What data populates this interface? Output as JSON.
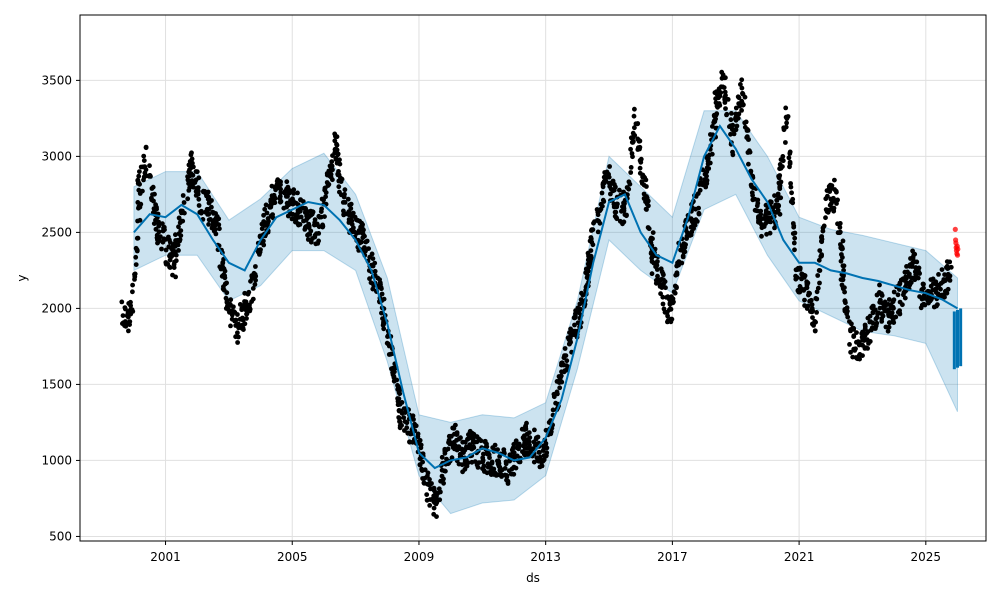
{
  "chart_data": {
    "type": "scatter",
    "title": "",
    "xlabel": "ds",
    "ylabel": "y",
    "xlim": [
      1998.3,
      2026.9
    ],
    "ylim": [
      470,
      3930
    ],
    "grid": true,
    "x_ticks": [
      2001,
      2005,
      2009,
      2013,
      2017,
      2021,
      2025
    ],
    "x_tick_labels": [
      "2001",
      "2005",
      "2009",
      "2013",
      "2017",
      "2021",
      "2025"
    ],
    "y_ticks": [
      500,
      1000,
      1500,
      2000,
      2500,
      3000,
      3500
    ],
    "y_tick_labels": [
      "500",
      "1000",
      "1500",
      "2000",
      "2500",
      "3000",
      "3500"
    ],
    "colors": {
      "observed": "#000000",
      "forecast": "#0072B2",
      "uncertainty": "#0072B2",
      "holdout": "#ff0000",
      "grid": "#e0e0e0"
    },
    "series": [
      {
        "kind": "trend",
        "x": [
          2000.0,
          2000.5,
          2001.0,
          2001.5,
          2002.0,
          2002.5,
          2003.0,
          2003.5,
          2004.0,
          2004.5,
          2005.0,
          2005.5,
          2006.0,
          2006.5,
          2007.0,
          2007.5,
          2008.0,
          2008.5,
          2009.0,
          2009.5,
          2010.0,
          2010.5,
          2011.0,
          2011.5,
          2012.0,
          2012.5,
          2013.0,
          2013.5,
          2014.0,
          2014.5,
          2015.0,
          2015.5,
          2016.0,
          2016.5,
          2017.0,
          2017.5,
          2018.0,
          2018.5,
          2019.0,
          2019.5,
          2020.0,
          2020.5,
          2021.0,
          2021.5,
          2022.0,
          2022.5,
          2023.0,
          2023.5,
          2024.0,
          2024.5,
          2025.0,
          2025.5,
          2026.0
        ],
        "y": [
          2500,
          2620,
          2600,
          2680,
          2620,
          2450,
          2300,
          2250,
          2450,
          2600,
          2650,
          2700,
          2680,
          2580,
          2450,
          2250,
          1900,
          1450,
          1050,
          950,
          1000,
          1020,
          1080,
          1050,
          1000,
          1020,
          1150,
          1400,
          1800,
          2300,
          2700,
          2750,
          2500,
          2350,
          2300,
          2600,
          3000,
          3200,
          3050,
          2850,
          2700,
          2450,
          2300,
          2300,
          2250,
          2230,
          2200,
          2180,
          2150,
          2120,
          2100,
          2060,
          2000
        ]
      },
      {
        "kind": "uncertainty_upper",
        "x": [
          2000.0,
          2001.0,
          2002.0,
          2003.0,
          2004.0,
          2005.0,
          2006.0,
          2007.0,
          2008.0,
          2009.0,
          2010.0,
          2011.0,
          2012.0,
          2013.0,
          2014.0,
          2015.0,
          2016.0,
          2017.0,
          2018.0,
          2019.0,
          2020.0,
          2021.0,
          2022.0,
          2023.0,
          2024.0,
          2025.0,
          2026.0
        ],
        "y": [
          2800,
          2900,
          2900,
          2580,
          2720,
          2920,
          3020,
          2750,
          2200,
          1300,
          1250,
          1300,
          1280,
          1380,
          2050,
          3000,
          2800,
          2600,
          3300,
          3300,
          3000,
          2600,
          2520,
          2480,
          2430,
          2380,
          2200
        ]
      },
      {
        "kind": "uncertainty_lower",
        "x": [
          2000.0,
          2001.0,
          2002.0,
          2003.0,
          2004.0,
          2005.0,
          2006.0,
          2007.0,
          2008.0,
          2009.0,
          2010.0,
          2011.0,
          2012.0,
          2013.0,
          2014.0,
          2015.0,
          2016.0,
          2017.0,
          2018.0,
          2019.0,
          2020.0,
          2021.0,
          2022.0,
          2023.0,
          2024.0,
          2025.0,
          2026.0
        ],
        "y": [
          2250,
          2350,
          2350,
          2050,
          2150,
          2380,
          2380,
          2250,
          1650,
          900,
          650,
          720,
          740,
          900,
          1600,
          2450,
          2250,
          2100,
          2650,
          2750,
          2350,
          2050,
          1950,
          1850,
          1820,
          1770,
          1320
        ]
      },
      {
        "kind": "observed",
        "x": [
          1999.9,
          2000.2,
          2000.4,
          2000.7,
          2001.0,
          2001.3,
          2001.5,
          2001.8,
          2002.1,
          2002.4,
          2002.7,
          2002.9,
          2003.2,
          2003.5,
          2003.8,
          2004.1,
          2004.4,
          2004.6,
          2004.9,
          2005.2,
          2005.5,
          2005.8,
          2006.1,
          2006.4,
          2006.6,
          2006.9,
          2007.2,
          2007.5,
          2007.8,
          2008.1,
          2008.4,
          2008.6,
          2008.9,
          2009.2,
          2009.5,
          2009.8,
          2010.1,
          2010.4,
          2010.6,
          2010.9,
          2011.2,
          2011.5,
          2011.8,
          2012.1,
          2012.4,
          2012.6,
          2012.9,
          2013.2,
          2013.5,
          2013.8,
          2014.1,
          2014.4,
          2014.6,
          2014.9,
          2015.2,
          2015.5,
          2015.8,
          2016.1,
          2016.4,
          2016.6,
          2016.9,
          2017.2,
          2017.5,
          2017.8,
          2018.1,
          2018.4,
          2018.6,
          2018.9,
          2019.2,
          2019.5,
          2019.8,
          2020.1,
          2020.4,
          2020.6,
          2020.9,
          2021.2,
          2021.5,
          2021.8,
          2022.1,
          2022.4,
          2022.6,
          2022.9,
          2023.2,
          2023.5,
          2023.8,
          2024.1,
          2024.4,
          2024.6,
          2024.9,
          2025.2,
          2025.5,
          2025.8
        ],
        "y": [
          1950,
          2750,
          3000,
          2550,
          2400,
          2300,
          2600,
          2950,
          2700,
          2650,
          2500,
          2100,
          1850,
          2000,
          2200,
          2550,
          2700,
          2800,
          2700,
          2650,
          2550,
          2500,
          2800,
          3100,
          2700,
          2550,
          2450,
          2250,
          2050,
          1700,
          1350,
          1250,
          1150,
          850,
          700,
          1000,
          1150,
          1000,
          1100,
          1050,
          1000,
          1000,
          950,
          1050,
          1150,
          1100,
          1000,
          1300,
          1550,
          1800,
          2000,
          2300,
          2550,
          2900,
          2700,
          2650,
          3250,
          2800,
          2350,
          2200,
          1950,
          2350,
          2550,
          2700,
          2950,
          3300,
          3500,
          3100,
          3450,
          2800,
          2550,
          2600,
          2700,
          3300,
          2200,
          2100,
          1950,
          2700,
          2750,
          2300,
          1800,
          1700,
          1850,
          2050,
          1950,
          2050,
          2150,
          2300,
          2050,
          2100,
          2150,
          2250
        ]
      },
      {
        "kind": "holdout",
        "x": [
          2025.93,
          2025.94,
          2025.95,
          2025.96,
          2025.97,
          2025.98,
          2025.99,
          2026.0,
          2026.01
        ],
        "y": [
          2520,
          2450,
          2430,
          2400,
          2380,
          2360,
          2410,
          2350,
          2390
        ]
      }
    ],
    "forecast_tail": {
      "x": [
        2025.9,
        2026.0,
        2026.1
      ],
      "y_high": [
        1980,
        1990,
        2000
      ],
      "y_low": [
        1600,
        1610,
        1620
      ]
    }
  }
}
